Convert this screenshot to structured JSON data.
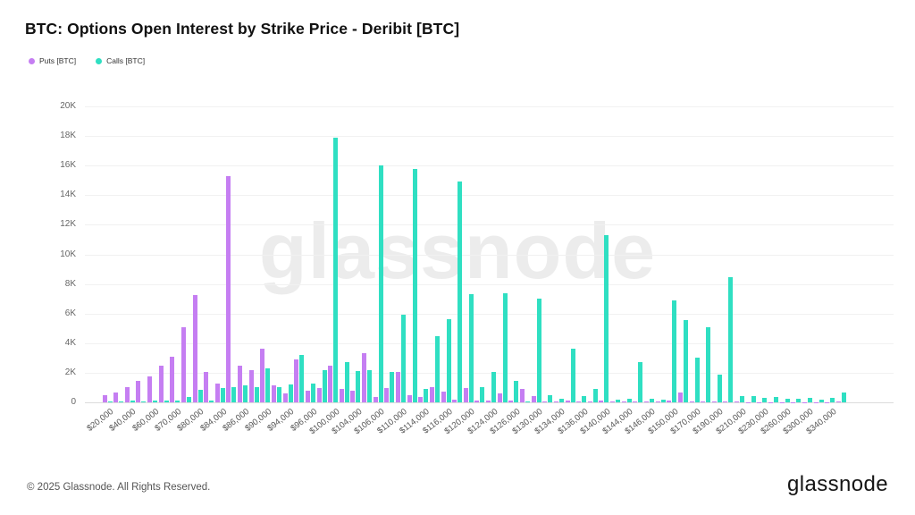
{
  "header": {
    "title": "BTC: Options Open Interest by Strike Price - Deribit [BTC]"
  },
  "legend": [
    {
      "label": "Puts [BTC]",
      "color": "#c57ef2"
    },
    {
      "label": "Calls [BTC]",
      "color": "#2fdfc2"
    }
  ],
  "watermark": "glassnode",
  "footer": {
    "copyright": "© 2025 Glassnode. All Rights Reserved.",
    "brand": "glassnode"
  },
  "colors": {
    "puts": "#c57ef2",
    "calls": "#2fdfc2",
    "grid": "#f1f1f1",
    "baseline": "#dcdcdc",
    "axis_text": "#555555"
  },
  "chart_data": {
    "type": "bar",
    "title": "BTC: Options Open Interest by Strike Price - Deribit [BTC]",
    "xlabel": "",
    "ylabel": "",
    "ylim": [
      0,
      20000
    ],
    "grid": "horizontal",
    "legend_position": "top-left",
    "y_ticks": [
      "0",
      "2K",
      "4K",
      "6K",
      "8K",
      "10K",
      "12K",
      "14K",
      "16K",
      "18K",
      "20K"
    ],
    "categories": [
      20000,
      30000,
      40000,
      50000,
      60000,
      65000,
      70000,
      75000,
      80000,
      82000,
      84000,
      85000,
      86000,
      88000,
      90000,
      92000,
      94000,
      95000,
      96000,
      98000,
      100000,
      102000,
      104000,
      105000,
      106000,
      108000,
      110000,
      112000,
      114000,
      115000,
      116000,
      118000,
      120000,
      122000,
      124000,
      125000,
      126000,
      128000,
      130000,
      132000,
      134000,
      135000,
      136000,
      138000,
      140000,
      142000,
      144000,
      145000,
      146000,
      148000,
      150000,
      160000,
      170000,
      180000,
      190000,
      200000,
      210000,
      220000,
      230000,
      240000,
      260000,
      280000,
      300000,
      320000,
      340000,
      360000
    ],
    "x_tick_labels": [
      "$20,000",
      "$40,000",
      "$60,000",
      "$70,000",
      "$80,000",
      "$84,000",
      "$86,000",
      "$90,000",
      "$94,000",
      "$96,000",
      "$100,000",
      "$104,000",
      "$106,000",
      "$110,000",
      "$114,000",
      "$116,000",
      "$120,000",
      "$124,000",
      "$126,000",
      "$130,000",
      "$134,000",
      "$136,000",
      "$140,000",
      "$144,000",
      "$146,000",
      "$150,000",
      "$170,000",
      "$190,000",
      "$210,000",
      "$230,000",
      "$260,000",
      "$300,000",
      "$340,000"
    ],
    "series": [
      {
        "name": "Puts [BTC]",
        "color": "#c57ef2",
        "values": [
          500,
          650,
          1050,
          1450,
          1750,
          2500,
          3100,
          5100,
          7250,
          2050,
          1300,
          15300,
          2500,
          2200,
          3600,
          1150,
          600,
          2900,
          800,
          950,
          2500,
          900,
          800,
          3350,
          350,
          950,
          2050,
          500,
          350,
          1050,
          750,
          200,
          950,
          100,
          150,
          600,
          150,
          900,
          400,
          50,
          50,
          100,
          50,
          50,
          150,
          50,
          50,
          50,
          50,
          50,
          100,
          650,
          50,
          50,
          50,
          70,
          50,
          20,
          20,
          20,
          20,
          20,
          20,
          20,
          20,
          80
        ]
      },
      {
        "name": "Calls [BTC]",
        "color": "#2fdfc2",
        "values": [
          50,
          50,
          100,
          50,
          100,
          100,
          150,
          350,
          850,
          100,
          950,
          1050,
          1150,
          1050,
          2300,
          1050,
          1200,
          3200,
          1250,
          2200,
          17900,
          2750,
          2100,
          2150,
          16000,
          2050,
          5900,
          15800,
          900,
          4500,
          5650,
          14900,
          7300,
          1050,
          2050,
          7350,
          1450,
          50,
          7000,
          500,
          250,
          3600,
          450,
          900,
          11300,
          200,
          250,
          2700,
          250,
          200,
          6900,
          5550,
          3050,
          5100,
          1850,
          8450,
          400,
          450,
          300,
          350,
          250,
          250,
          300,
          200,
          300,
          650
        ]
      }
    ]
  }
}
